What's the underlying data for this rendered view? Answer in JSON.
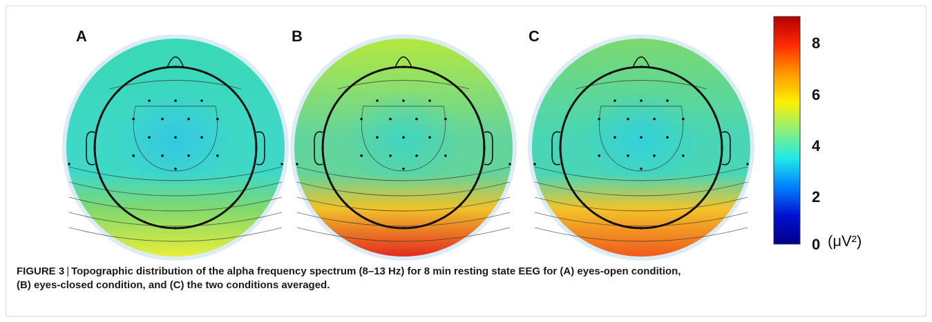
{
  "figure": {
    "panels": [
      {
        "letter": "A",
        "colors": {
          "front": "#38d9b4",
          "mid": "#3fd8c7",
          "center": "#2fc6e8",
          "back_mid": "#7fd870",
          "back": "#e8ee3a"
        }
      },
      {
        "letter": "B",
        "colors": {
          "front": "#b4e83e",
          "mid": "#63d49c",
          "center": "#3ad6c8",
          "back_mid": "#f0c22a",
          "back": "#e32a1f"
        }
      },
      {
        "letter": "C",
        "colors": {
          "front": "#7bd86e",
          "mid": "#48d6b6",
          "center": "#2fd0e0",
          "back_mid": "#f2c42a",
          "back": "#f05a1c"
        }
      }
    ],
    "colorbar": {
      "ticks": [
        "8",
        "6",
        "4",
        "2",
        "0"
      ],
      "unit": "(μV²)",
      "colors": [
        "#b30000",
        "#ff2a00",
        "#ff9900",
        "#ffee00",
        "#8bf27a",
        "#1fe8e8",
        "#0080ff",
        "#0010d0",
        "#00008a"
      ]
    }
  },
  "caption": {
    "label": "FIGURE 3",
    "separator": "|",
    "text": "Topographic distribution of the alpha frequency spectrum (8–13 Hz) for 8 min resting state EEG for (A) eyes-open condition,",
    "text_line2": "(B) eyes-closed condition, and (C) the two conditions averaged."
  }
}
